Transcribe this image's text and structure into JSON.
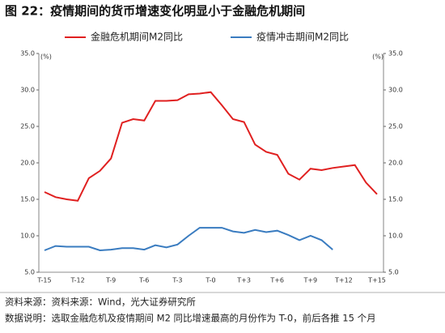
{
  "chart_data": {
    "type": "line",
    "title": "图 22：疫情期间的货币增速变化明显小于金融危机期间",
    "ylabel": "(%)",
    "y2label": "(%)",
    "categories": [
      "T-15",
      null,
      null,
      "T-12",
      null,
      null,
      "T-9",
      null,
      null,
      "T-6",
      null,
      null,
      "T-3",
      null,
      null,
      "T-0",
      null,
      null,
      "T+3",
      null,
      null,
      "T+6",
      null,
      null,
      "T+9",
      null,
      null,
      "T+12",
      null,
      null,
      "T+15"
    ],
    "series": [
      {
        "name": "金融危机期间M2同比",
        "color": "#e02020",
        "values": [
          16.0,
          15.3,
          15.0,
          14.8,
          17.9,
          18.9,
          20.6,
          25.5,
          26.0,
          25.8,
          28.5,
          28.5,
          28.6,
          29.4,
          29.5,
          29.7,
          27.9,
          26.0,
          25.6,
          22.5,
          21.5,
          21.1,
          18.5,
          17.7,
          19.2,
          19.0,
          19.3,
          19.5,
          19.7,
          17.3,
          15.7
        ]
      },
      {
        "name": "疫情冲击期间M2同比",
        "color": "#3a7cc0",
        "values": [
          8.0,
          8.6,
          8.5,
          8.5,
          8.5,
          8.0,
          8.1,
          8.3,
          8.3,
          8.1,
          8.7,
          8.4,
          8.8,
          10.0,
          11.1,
          11.1,
          11.1,
          10.6,
          10.4,
          10.8,
          10.5,
          10.7,
          10.1,
          9.4,
          10.0,
          9.4,
          8.1,
          null,
          null,
          null,
          null
        ]
      }
    ],
    "ylim": [
      5,
      35
    ],
    "yticks": [
      {
        "value": 5,
        "label": "5.0"
      },
      {
        "value": 10,
        "label": "10.0"
      },
      {
        "value": 15,
        "label": "15.0"
      },
      {
        "value": 20,
        "label": "20.0"
      },
      {
        "value": 25,
        "label": "25.0"
      },
      {
        "value": 30,
        "label": "30.0"
      },
      {
        "value": 35,
        "label": "35.0"
      }
    ],
    "y2lim": [
      5,
      35
    ],
    "y2ticks": [
      {
        "value": 5,
        "label": "5.0"
      },
      {
        "value": 10,
        "label": "10.0"
      },
      {
        "value": 15,
        "label": "15.0"
      },
      {
        "value": 20,
        "label": "20.0"
      },
      {
        "value": 25,
        "label": "25.0"
      },
      {
        "value": 30,
        "label": "30.0"
      },
      {
        "value": 35,
        "label": "35.0"
      }
    ],
    "grid": false
  },
  "notes": [
    "资料来源：资料来源：Wind，光大证券研究所",
    "数据说明：选取金融危机及疫情期间 M2 同比增速最高的月份作为 T-0，前后各推 15 个月"
  ]
}
